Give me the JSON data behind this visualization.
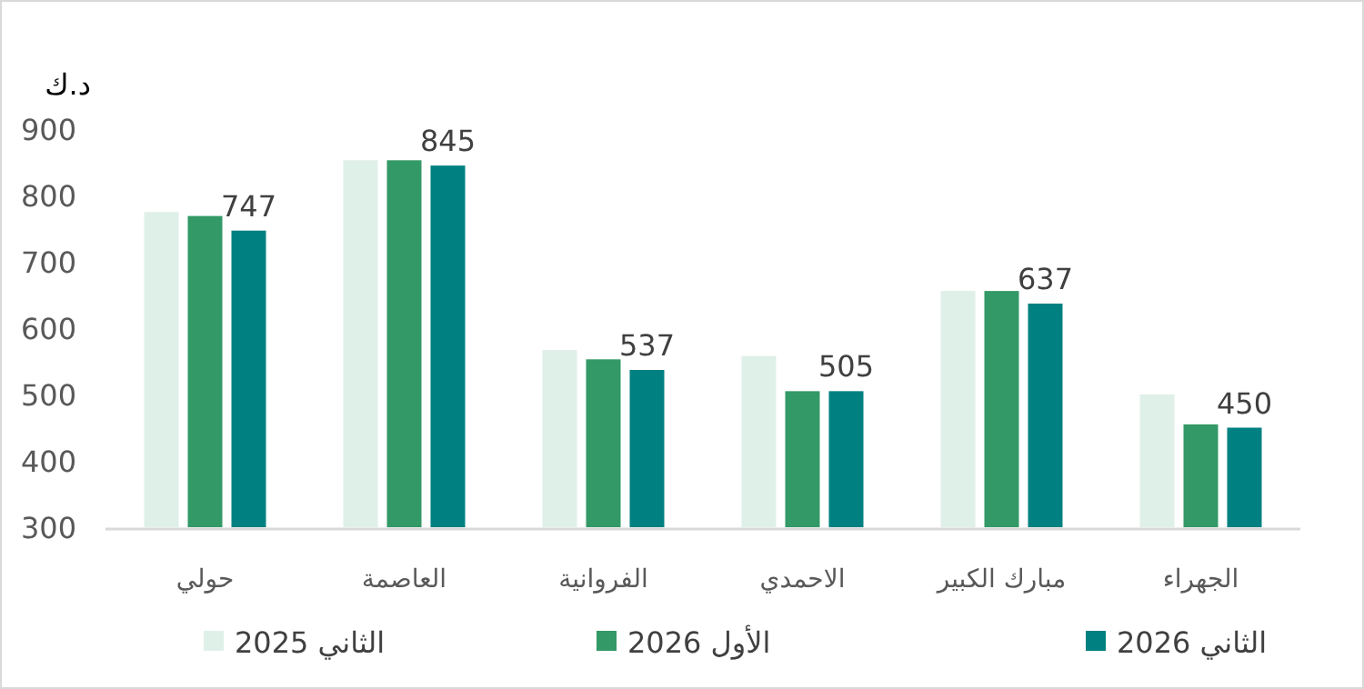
{
  "chart_data": {
    "type": "bar",
    "ylabel": "د.ك",
    "categories": [
      "حولي",
      "العاصمة",
      "الفروانية",
      "الاحمدي",
      "مبارك الكبير",
      "الجهراء"
    ],
    "series": [
      {
        "name": "الثاني 2025",
        "color": "#dff0e8",
        "values": [
          775,
          853,
          567,
          558,
          656,
          500
        ]
      },
      {
        "name": "الأول 2026",
        "color": "#339966",
        "values": [
          769,
          853,
          553,
          505,
          656,
          455
        ]
      },
      {
        "name": "الثاني 2026",
        "color": "#008080",
        "values": [
          747,
          845,
          537,
          505,
          637,
          450
        ],
        "value_labels": [
          "747",
          "845",
          "537",
          "505",
          "637",
          "450"
        ]
      }
    ],
    "ylim": [
      300,
      900
    ],
    "yticks": [
      300,
      400,
      500,
      600,
      700,
      800,
      900
    ],
    "grid": false,
    "legend": "bottom"
  }
}
